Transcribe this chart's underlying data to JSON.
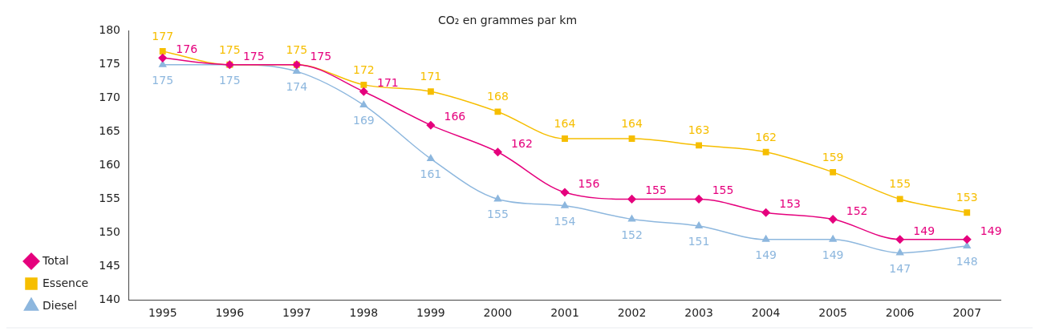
{
  "chart_data": {
    "type": "line",
    "title": "CO₂ en grammes par km",
    "categories": [
      "1995",
      "1996",
      "1997",
      "1998",
      "1999",
      "2000",
      "2001",
      "2002",
      "2003",
      "2004",
      "2005",
      "2006",
      "2007"
    ],
    "series": [
      {
        "name": "Total",
        "color": "#e5007d",
        "marker": "diamond",
        "values": [
          176,
          175,
          175,
          171,
          166,
          162,
          156,
          155,
          155,
          153,
          152,
          149,
          149
        ]
      },
      {
        "name": "Essence",
        "color": "#f6be00",
        "marker": "square",
        "values": [
          177,
          175,
          175,
          172,
          171,
          168,
          164,
          164,
          163,
          162,
          159,
          155,
          153
        ]
      },
      {
        "name": "Diesel",
        "color": "#8db7de",
        "marker": "triangle",
        "values": [
          175,
          175,
          174,
          169,
          161,
          155,
          154,
          152,
          151,
          149,
          149,
          147,
          148
        ]
      }
    ],
    "ylim": [
      140,
      180
    ],
    "yticks": [
      140,
      145,
      150,
      155,
      160,
      165,
      170,
      175,
      180
    ],
    "grid": false,
    "legend": "left",
    "data_labels": true
  }
}
